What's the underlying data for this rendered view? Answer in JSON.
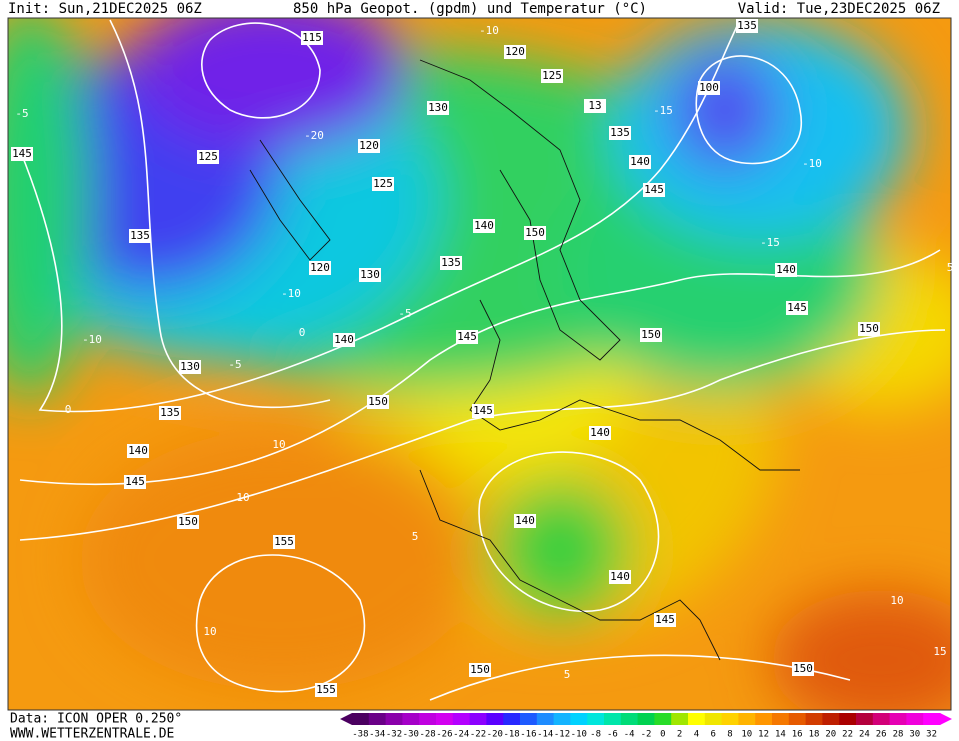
{
  "header": {
    "init": "Init: Sun,21DEC2025 06Z",
    "title": "850 hPa Geopot. (gpdm) und Temperatur (°C)",
    "valid": "Valid: Tue,23DEC2025 06Z"
  },
  "footer": {
    "data": "Data: ICON OPER 0.250°",
    "site": "WWW.WETTERZENTRALE.DE"
  },
  "geopotential_labels": [
    115,
    120,
    125,
    130,
    13,
    135,
    140,
    145,
    145,
    125,
    120,
    125,
    135,
    140,
    150,
    135,
    120,
    130,
    140,
    145,
    150,
    145,
    140,
    150,
    130,
    150,
    135,
    145,
    140,
    140,
    145,
    150,
    140,
    155,
    140,
    145,
    150,
    155,
    150,
    135,
    100
  ],
  "temperature_labels": [
    -10,
    -15,
    -10,
    -15,
    -5,
    -20,
    -10,
    -10,
    -5,
    0,
    -5,
    0,
    10,
    10,
    5,
    10,
    5,
    10,
    15,
    5
  ],
  "colorbar": {
    "labels": [
      -38,
      -34,
      -32,
      -30,
      -28,
      -26,
      -24,
      -22,
      -20,
      -18,
      -16,
      -14,
      -12,
      -10,
      -8,
      -6,
      -4,
      -2,
      0,
      2,
      4,
      6,
      8,
      10,
      12,
      14,
      16,
      18,
      20,
      22,
      24,
      26,
      28,
      30,
      32
    ],
    "colors": [
      "#4b0060",
      "#6a0087",
      "#8a00aa",
      "#a500c8",
      "#c000e0",
      "#d200f0",
      "#b400ff",
      "#8c00ff",
      "#5a00ff",
      "#2828ff",
      "#1e5aff",
      "#1e8cff",
      "#14b4ff",
      "#00d2ff",
      "#00e6dc",
      "#00e6aa",
      "#00dc78",
      "#00d250",
      "#28dc28",
      "#a0e600",
      "#ffff00",
      "#f0e600",
      "#ffd200",
      "#ffb400",
      "#ff9600",
      "#f57800",
      "#e65a00",
      "#d23c00",
      "#be1e00",
      "#aa0000",
      "#b4003c",
      "#d20078",
      "#e600b4",
      "#f000dc",
      "#ff00ff"
    ]
  }
}
